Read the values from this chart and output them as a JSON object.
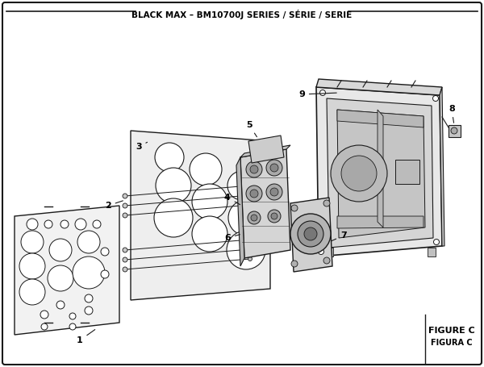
{
  "title": "BLACK MAX – BM10700J SERIES / SÉRIE / SERIE",
  "figure_label": "FIGURE C",
  "figura_label": "FIGURA C",
  "bg_color": "#ffffff",
  "lc": "#1a1a1a",
  "panel1_fc": "#f2f2f2",
  "panel2_fc": "#eeeeee",
  "valve_fc": "#d8d8d8",
  "box_fc": "#e8e8e8",
  "box_inner_fc": "#d0d0d0"
}
